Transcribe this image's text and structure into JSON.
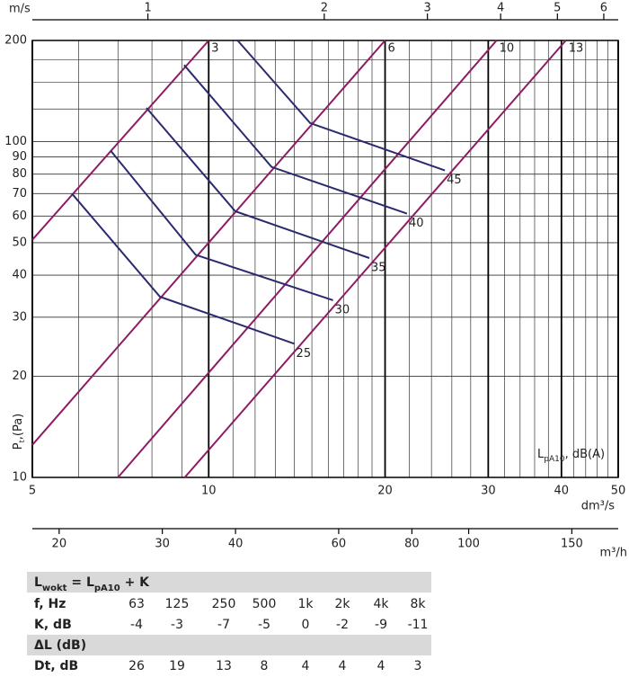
{
  "chart_data": {
    "type": "line",
    "log_x": true,
    "log_y": true,
    "x_label": "dm³/s",
    "y_label": [
      {
        "text": "P"
      },
      {
        "text": "t",
        "sub": true
      },
      {
        "text": ",(Pa)"
      }
    ],
    "xlim": [
      5,
      50
    ],
    "xticks": [
      5,
      10,
      20,
      30,
      40,
      50
    ],
    "xgrid_minor": [
      6,
      7,
      8,
      9,
      11,
      12,
      13,
      14,
      15,
      16,
      17,
      18,
      19,
      22,
      24,
      26,
      28,
      32,
      34,
      36,
      38,
      42,
      44,
      46,
      48
    ],
    "ylim": [
      10,
      200
    ],
    "yticks": [
      10,
      20,
      30,
      40,
      50,
      60,
      70,
      80,
      90,
      100,
      200
    ],
    "ygrid_minor": [
      125,
      150,
      175
    ],
    "grid_color": "#333333",
    "major_grid_color": "#000000",
    "top_axis": {
      "label": "m/s",
      "lim": [
        0.635,
        6.35
      ],
      "ticks": [
        1,
        2,
        3,
        4,
        5,
        6
      ]
    },
    "bottom_axis": {
      "label": "m³/h",
      "lim": [
        18,
        180
      ],
      "ticks": [
        20,
        30,
        40,
        60,
        80,
        100,
        150
      ]
    },
    "velocity_color": "#8e1b63",
    "sound_color": "#2b2a6e",
    "velocity_lines": [
      {
        "name": "3",
        "x": [
          5,
          10
        ],
        "values": [
          51,
          200
        ]
      },
      {
        "name": "6",
        "x": [
          5,
          20
        ],
        "values": [
          12.5,
          200
        ]
      },
      {
        "name": "10",
        "x": [
          7,
          31
        ],
        "values": [
          10,
          200
        ]
      },
      {
        "name": "13",
        "x": [
          9.1,
          40.7
        ],
        "values": [
          10,
          200
        ]
      }
    ],
    "sound_lines": [
      {
        "name": "25",
        "x": [
          5.84,
          8.26,
          14.0
        ],
        "values": [
          70,
          34.5,
          25
        ]
      },
      {
        "name": "30",
        "x": [
          6.8,
          9.5,
          16.3
        ],
        "values": [
          94,
          46,
          33.7
        ]
      },
      {
        "name": "35",
        "x": [
          7.83,
          11.1,
          18.8
        ],
        "values": [
          126,
          62,
          45
        ]
      },
      {
        "name": "40",
        "x": [
          9.08,
          12.8,
          21.8
        ],
        "values": [
          169,
          84,
          61
        ]
      },
      {
        "name": "45",
        "x": [
          11.2,
          14.9,
          25.3
        ],
        "values": [
          200,
          113.5,
          82
        ]
      }
    ],
    "sound_label": [
      {
        "text": "L"
      },
      {
        "text": "pA10",
        "sub": true
      },
      {
        "text": ", dB(A)"
      }
    ]
  },
  "table": {
    "formula": [
      {
        "text": "L"
      },
      {
        "text": "wokt",
        "sub": true
      },
      {
        "text": " = L"
      },
      {
        "text": "pA10",
        "sub": true
      },
      {
        "text": " + K"
      }
    ],
    "rows": [
      [
        "f, Hz",
        63,
        125,
        250,
        500,
        "1k",
        "2k",
        "4k",
        "8k"
      ],
      [
        "K, dB",
        -4,
        -3,
        -7,
        -5,
        0,
        -2,
        -9,
        -11
      ]
    ],
    "section": "ΔL (dB)",
    "rows2": [
      [
        "Dt, dB",
        26,
        19,
        13,
        8,
        4,
        4,
        4,
        3
      ]
    ]
  }
}
